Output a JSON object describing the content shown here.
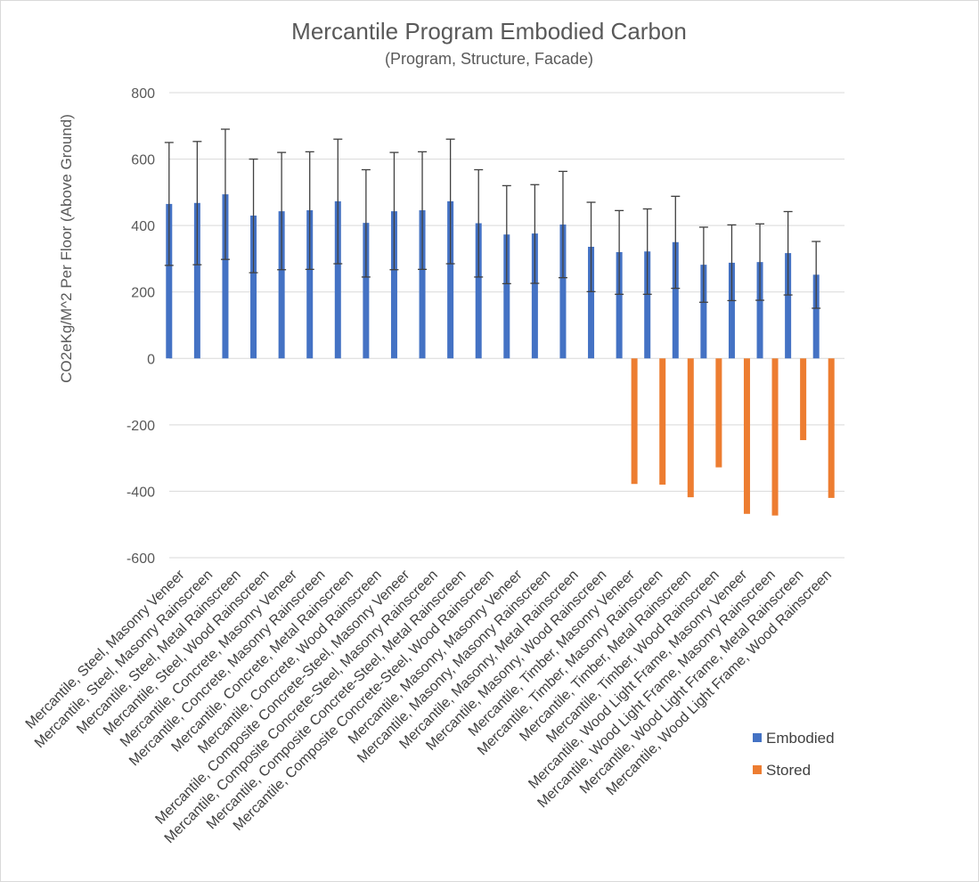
{
  "chart_data": {
    "type": "bar",
    "title": "Mercantile Program Embodied Carbon",
    "subtitle": "(Program, Structure, Facade)",
    "xlabel": "",
    "ylabel": "CO2eKg/M^2 Per Floor (Above Ground)",
    "ylim": [
      -600,
      800
    ],
    "yticks": [
      800,
      600,
      400,
      200,
      0,
      -200,
      -400,
      -600
    ],
    "grid": true,
    "legend_position": "bottom-right",
    "categories": [
      "Mercantile, Steel, Masonry Veneer",
      "Mercantile, Steel, Masonry Rainscreen",
      "Mercantile, Steel, Metal Rainscreen",
      "Mercantile, Steel, Wood Rainscreen",
      "Mercantile, Concrete, Masonry Veneer",
      "Mercantile, Concrete, Masonry Rainscreen",
      "Mercantile, Concrete, Metal Rainscreen",
      "Mercantile, Concrete, Wood Rainscreen",
      "Mercantile, Composite Concrete-Steel, Masonry Veneer",
      "Mercantile, Composite Concrete-Steel, Masonry Rainscreen",
      "Mercantile, Composite Concrete-Steel, Metal Rainscreen",
      "Mercantile, Composite Concrete-Steel, Wood Rainscreen",
      "Mercantile, Masonry, Masonry Veneer",
      "Mercantile, Masonry, Masonry Rainscreen",
      "Mercantile, Masonry, Metal Rainscreen",
      "Mercantile, Masonry, Wood Rainscreen",
      "Mercantile, Timber, Masonry Veneer",
      "Mercantile, Timber, Masonry Rainscreen",
      "Mercantile, Timber, Metal Rainscreen",
      "Mercantile, Timber, Wood Rainscreen",
      "Mercantile, Wood Light Frame, Masonry Veneer",
      "Mercantile, Wood Light Frame, Masonry Rainscreen",
      "Mercantile, Wood Light Frame, Metal Rainscreen",
      "Mercantile, Wood Light Frame, Wood Rainscreen"
    ],
    "series": [
      {
        "name": "Embodied",
        "color": "#4472c4",
        "values": [
          465,
          468,
          494,
          430,
          443,
          446,
          473,
          408,
          443,
          446,
          473,
          407,
          373,
          376,
          403,
          336,
          320,
          322,
          350,
          282,
          288,
          290,
          317,
          252
        ],
        "error_low": [
          280,
          282,
          298,
          258,
          267,
          268,
          285,
          245,
          267,
          268,
          285,
          245,
          225,
          226,
          243,
          201,
          193,
          193,
          211,
          169,
          174,
          175,
          191,
          151
        ],
        "error_high": [
          650,
          653,
          690,
          600,
          620,
          622,
          660,
          568,
          620,
          622,
          660,
          568,
          520,
          523,
          563,
          470,
          445,
          450,
          488,
          395,
          402,
          405,
          442,
          352
        ]
      },
      {
        "name": "Stored",
        "color": "#ed7d31",
        "values": [
          null,
          null,
          null,
          null,
          null,
          null,
          null,
          null,
          null,
          null,
          null,
          null,
          null,
          null,
          null,
          null,
          -378,
          -380,
          -418,
          -328,
          -468,
          -473,
          -246,
          -420
        ]
      }
    ]
  }
}
